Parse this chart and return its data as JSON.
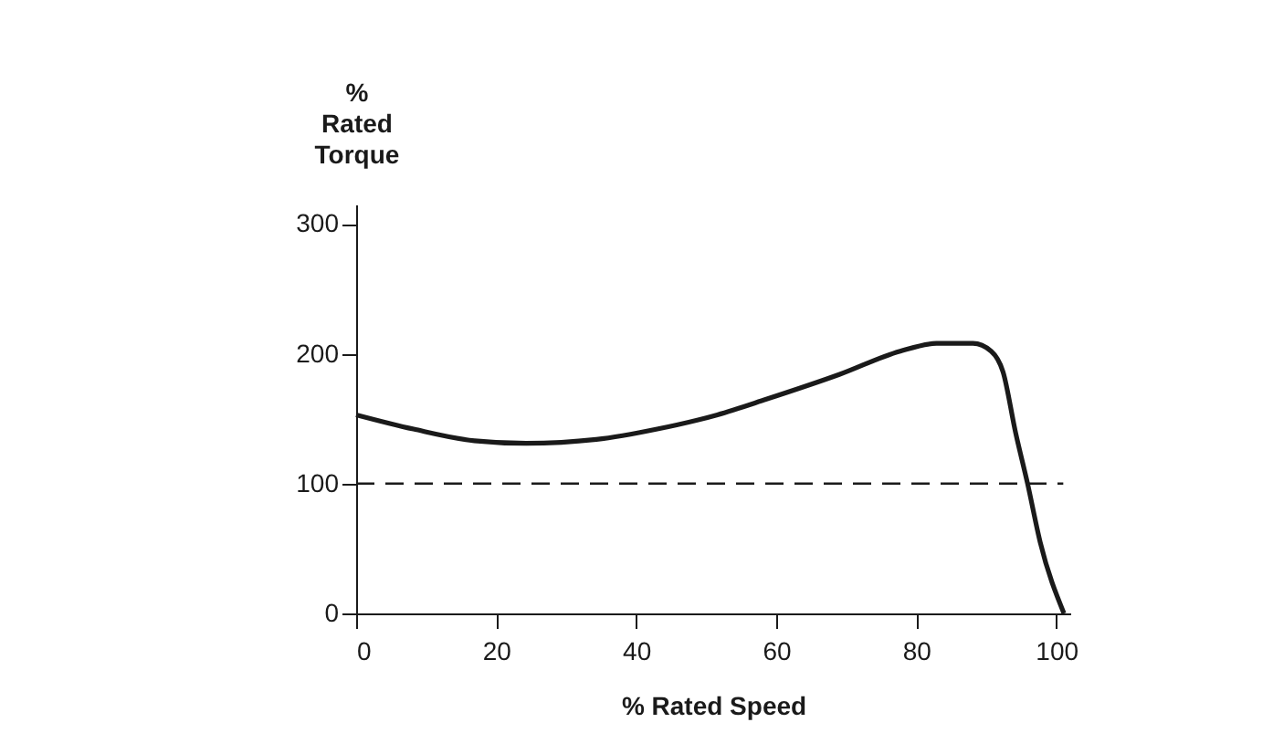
{
  "chart_data": {
    "type": "line",
    "xlabel": "% Rated Speed",
    "ylabel": "% Rated Torque",
    "x": [
      0,
      8.2,
      16.9,
      24.3,
      34.3,
      43,
      51.6,
      58.6,
      69,
      77.7,
      82.9,
      88.1,
      90.7,
      92.4,
      94.2,
      95.9,
      97.7,
      101.1
    ],
    "series": [
      {
        "color": "#1a1a1a",
        "values": [
          153,
          142,
          133,
          131,
          134,
          142,
          153,
          165,
          184,
          202,
          208,
          208,
          202,
          186,
          139,
          100,
          55,
          0
        ]
      }
    ],
    "xlim": [
      0,
      102
    ],
    "ylim": [
      0,
      315
    ],
    "xticks": [
      0,
      20,
      40,
      60,
      80,
      100
    ],
    "yticks": [
      0,
      100,
      200,
      300
    ],
    "ref_lines": [
      {
        "axis": "y",
        "value": 100,
        "color": "#1a1a1a",
        "line_style": "dashed"
      }
    ],
    "grid": false,
    "marker": "none",
    "line_style": "solid"
  }
}
